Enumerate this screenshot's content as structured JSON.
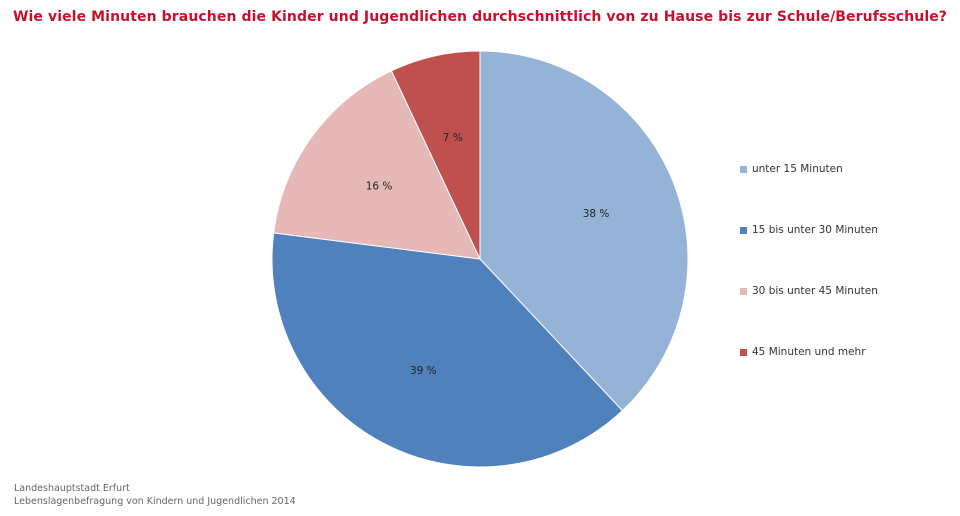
{
  "chart_data": {
    "type": "pie",
    "title": "Wie viele Minuten brauchen die Kinder und Jugendlichen durchschnittlich von zu Hause bis zur Schule/Berufsschule?",
    "categories": [
      "unter 15 Minuten",
      "15 bis unter 30 Minuten",
      "30 bis unter 45 Minuten",
      "45 Minuten und mehr"
    ],
    "values": [
      38,
      39,
      16,
      7
    ],
    "labels": [
      "38 %",
      "39 %",
      "16 %",
      "7 %"
    ],
    "colors": [
      "#95b3d7",
      "#4f81bd",
      "#e6b9b8",
      "#c0504d"
    ],
    "legend_position": "right"
  },
  "footer": {
    "line1": "Landeshauptstadt Erfurt",
    "line2": "Lebenslagenbefragung von Kindern und Jugendlichen 2014"
  }
}
